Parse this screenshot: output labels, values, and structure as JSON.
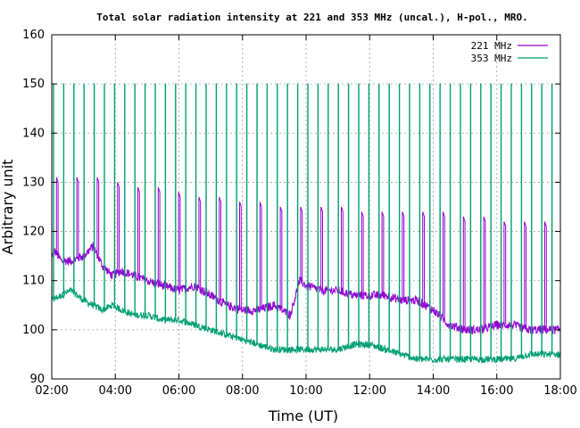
{
  "chart_data": {
    "type": "line",
    "title": "Total solar radiation intensity at 221 and 353 MHz (uncal.), H-pol., MRO.",
    "xlabel": "Time (UT)",
    "ylabel": "Arbitrary unit",
    "xlim": [
      2,
      18
    ],
    "ylim": [
      90,
      160
    ],
    "x_ticks": [
      2,
      4,
      6,
      8,
      10,
      12,
      14,
      16,
      18
    ],
    "x_tick_labels": [
      "02:00",
      "04:00",
      "06:00",
      "08:00",
      "10:00",
      "12:00",
      "14:00",
      "16:00",
      "18:00"
    ],
    "y_ticks": [
      90,
      100,
      110,
      120,
      130,
      140,
      150,
      160
    ],
    "y_tick_labels": [
      "90",
      "100",
      "110",
      "120",
      "130",
      "140",
      "150",
      "160"
    ],
    "grid": true,
    "legend_position": "top-right",
    "series": [
      {
        "name": "221 MHz",
        "color": "#9400d3",
        "baseline_x": [
          2.0,
          2.1,
          2.3,
          2.6,
          3.0,
          3.3,
          3.6,
          3.9,
          4.2,
          4.6,
          5.0,
          5.5,
          6.0,
          6.5,
          7.0,
          7.5,
          8.0,
          8.5,
          9.0,
          9.5,
          9.8,
          10.0,
          10.5,
          11.0,
          11.5,
          12.0,
          12.5,
          13.0,
          13.5,
          14.0,
          14.5,
          15.0,
          15.5,
          16.0,
          16.5,
          17.0,
          17.5,
          18.0
        ],
        "baseline_y": [
          115,
          116,
          114,
          114,
          115,
          117,
          113,
          111,
          112,
          111,
          110,
          109,
          108,
          109,
          107,
          105,
          104,
          104,
          105,
          103,
          110,
          109,
          108,
          108,
          107,
          107,
          107,
          106,
          106,
          104,
          101,
          100,
          100,
          101,
          101,
          100,
          100,
          100
        ],
        "spike_peak_y": [
          131,
          131,
          131,
          130,
          129,
          129,
          128,
          127,
          127,
          126,
          126,
          125,
          125,
          125,
          125,
          124,
          124,
          124,
          124,
          124,
          123,
          123,
          122,
          122,
          122
        ]
      },
      {
        "name": "353 MHz",
        "color": "#009e73",
        "baseline_x": [
          2.0,
          2.3,
          2.6,
          3.0,
          3.3,
          3.6,
          3.9,
          4.2,
          4.6,
          5.0,
          5.5,
          6.0,
          6.5,
          7.0,
          7.5,
          8.0,
          8.5,
          9.0,
          9.5,
          10.0,
          10.5,
          11.0,
          11.5,
          12.0,
          12.5,
          13.0,
          13.5,
          14.0,
          14.5,
          15.0,
          15.5,
          16.0,
          16.5,
          17.0,
          17.5,
          18.0
        ],
        "baseline_y": [
          106,
          107,
          108,
          106,
          105,
          104,
          105,
          104,
          103,
          103,
          102,
          102,
          101,
          100,
          99,
          98,
          97,
          96,
          96,
          96,
          96,
          96,
          97,
          97,
          96,
          95,
          94,
          94,
          94,
          94,
          94,
          94,
          94,
          95,
          95,
          95
        ],
        "spike_peak_y": 150
      }
    ]
  }
}
